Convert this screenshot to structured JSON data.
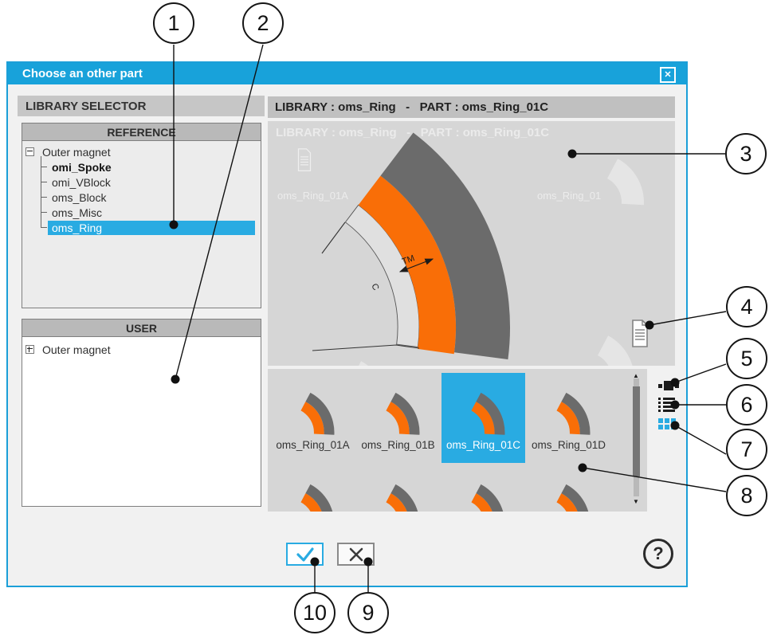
{
  "colors": {
    "accent": "#29abe2",
    "titlebar": "#18a2da",
    "magnet_orange": "#f96e07",
    "magnet_gray": "#6b6b6b"
  },
  "icons": {
    "close": "✕",
    "help": "?",
    "scroll_up": "▲",
    "scroll_down": "▼",
    "ok": "check-mark",
    "cancel": "x-cross",
    "doc": "document-sheet",
    "view_large": "large-thumbnails",
    "view_list": "detailed-list",
    "view_grid": "small-thumbnails"
  },
  "dialog": {
    "title": "Choose an other part",
    "library_selector": {
      "label": "LIBRARY SELECTOR",
      "reference": {
        "header": "REFERENCE",
        "root": "Outer magnet",
        "items": [
          {
            "label": "omi_Spoke",
            "bold": true,
            "selected": false
          },
          {
            "label": "omi_VBlock",
            "bold": false,
            "selected": false
          },
          {
            "label": "oms_Block",
            "bold": false,
            "selected": false
          },
          {
            "label": "oms_Misc",
            "bold": false,
            "selected": false
          },
          {
            "label": "oms_Ring",
            "bold": false,
            "selected": true
          }
        ]
      },
      "user": {
        "header": "USER",
        "root": "Outer magnet"
      }
    },
    "part_panel": {
      "header": "LIBRARY : oms_Ring   -   PART : oms_Ring_01C",
      "preview": {
        "dim_label": "TM",
        "arc_label": "C"
      },
      "ghost": {
        "labels": [
          "oms_Ring_01A",
          "oms_Ring_01"
        ]
      },
      "thumbnails": [
        {
          "label": "oms_Ring_01A",
          "selected": false
        },
        {
          "label": "oms_Ring_01B",
          "selected": false
        },
        {
          "label": "oms_Ring_01C",
          "selected": true
        },
        {
          "label": "oms_Ring_01D",
          "selected": false
        }
      ]
    }
  },
  "callouts": {
    "labels": [
      "1",
      "2",
      "3",
      "4",
      "5",
      "6",
      "7",
      "8",
      "9",
      "10"
    ]
  }
}
